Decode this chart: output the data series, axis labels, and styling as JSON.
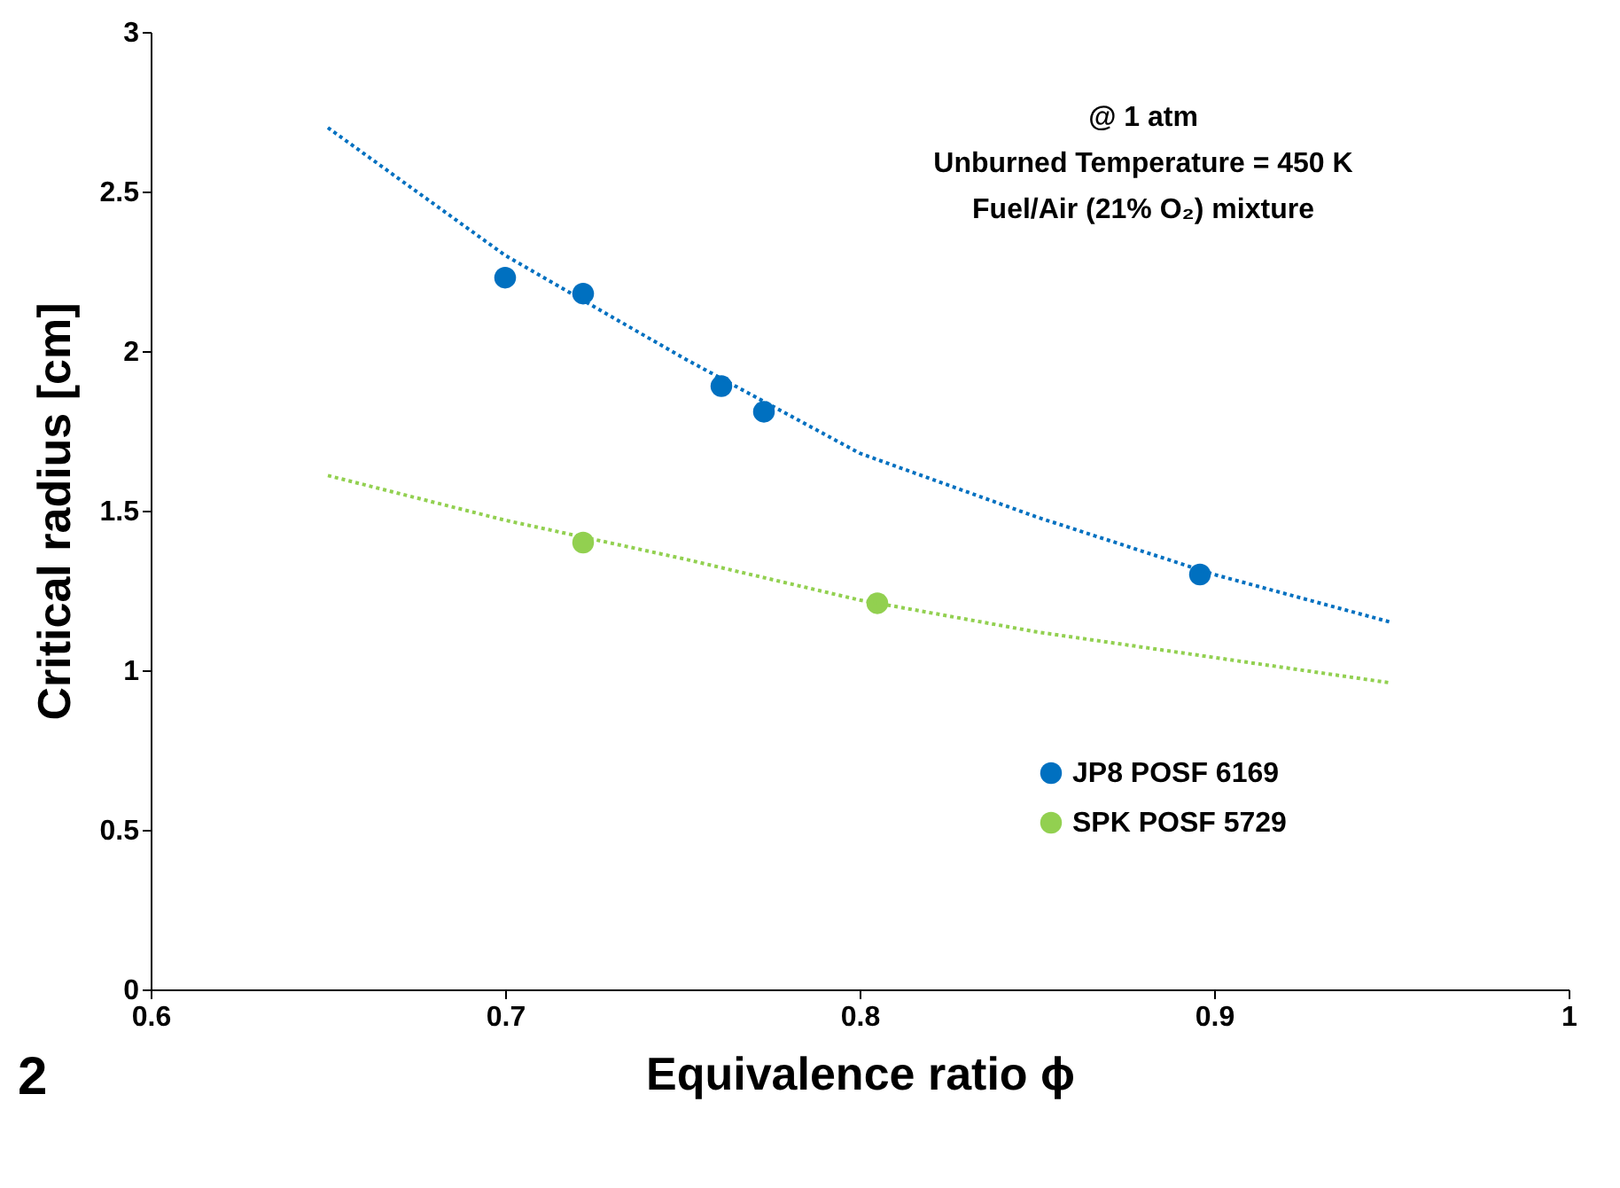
{
  "chart_data": {
    "type": "scatter",
    "xlabel": "Equivalence ratio ϕ",
    "ylabel": "Critical radius [cm]",
    "xlim": [
      0.6,
      1
    ],
    "xticks": [
      0.6,
      0.7,
      0.8,
      0.9,
      1
    ],
    "ylim": [
      0,
      3
    ],
    "yticks": [
      0,
      0.5,
      1,
      1.5,
      2,
      2.5,
      3
    ],
    "grid": false,
    "legend": "right",
    "marker": "circle",
    "annotations": [
      "@ 1 atm",
      "Unburned Temperature = 450 K",
      "Fuel/Air (21% O₂) mixture",
      "2"
    ],
    "series": [
      {
        "name": "JP8 POSF 6169",
        "color": "#0070c0",
        "x": [
          0.7,
          0.722,
          0.761,
          0.773,
          0.896
        ],
        "values": [
          2.23,
          2.18,
          1.89,
          1.81,
          1.3
        ]
      },
      {
        "name": "SPK POSF 5729",
        "color": "#92d050",
        "x": [
          0.722,
          0.805
        ],
        "values": [
          1.4,
          1.21
        ]
      },
      {
        "type": "line",
        "color": "#0070c0",
        "line_style": "dotted",
        "marker": "none",
        "x": [
          0.65,
          0.7,
          0.75,
          0.8,
          0.85,
          0.9,
          0.95
        ],
        "values": [
          2.7,
          2.3,
          1.98,
          1.68,
          1.48,
          1.3,
          1.15
        ]
      },
      {
        "type": "line",
        "color": "#92d050",
        "line_style": "dotted",
        "marker": "none",
        "x": [
          0.65,
          0.7,
          0.75,
          0.8,
          0.85,
          0.9,
          0.95
        ],
        "values": [
          1.61,
          1.47,
          1.35,
          1.22,
          1.12,
          1.04,
          0.96
        ]
      }
    ]
  }
}
